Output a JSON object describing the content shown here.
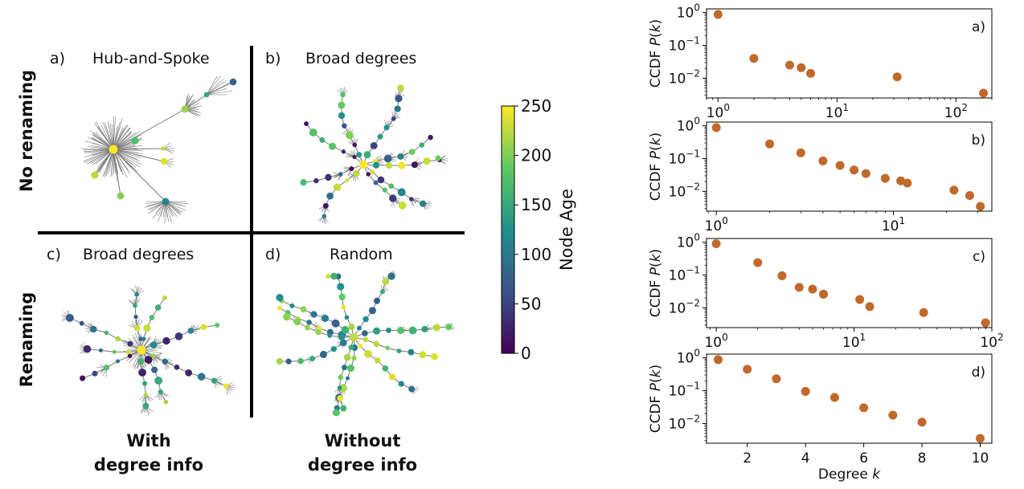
{
  "networks": {
    "row_labels": [
      "No renaming",
      "Renaming"
    ],
    "column_labels": [
      [
        "With",
        "degree info"
      ],
      [
        "Without",
        "degree info"
      ]
    ],
    "panels": [
      {
        "letter": "a)",
        "title": "Hub-and-Spoke"
      },
      {
        "letter": "b)",
        "title": "Broad degrees"
      },
      {
        "letter": "c)",
        "title": "Broad degrees"
      },
      {
        "letter": "d)",
        "title": "Random"
      }
    ]
  },
  "colorbar": {
    "label": "Node Age",
    "ticks": [
      0,
      50,
      100,
      150,
      200,
      250
    ],
    "range": [
      0,
      250
    ],
    "colors": [
      "#440154",
      "#3b528b",
      "#21918c",
      "#5ec962",
      "#fde725"
    ]
  },
  "chart_data": [
    {
      "type": "scatter",
      "panel_label": "a)",
      "ylabel": "CCDF P(k)",
      "xscale": "log",
      "yscale": "log",
      "xlim": [
        0.8,
        200
      ],
      "ylim": [
        0.0025,
        1.3
      ],
      "xticks": [
        1,
        10,
        100
      ],
      "xtick_labels": [
        [
          "10",
          "0"
        ],
        [
          "10",
          "1"
        ],
        [
          "10",
          "2"
        ]
      ],
      "yticks": [
        1,
        0.1,
        0.01
      ],
      "ytick_labels": [
        [
          "10",
          "0"
        ],
        [
          "10",
          "-1"
        ],
        [
          "10",
          "-2"
        ]
      ],
      "marker_color": "#c0692b",
      "x": [
        1,
        2,
        4,
        5,
        6,
        32,
        170
      ],
      "y": [
        0.88,
        0.04,
        0.025,
        0.021,
        0.014,
        0.011,
        0.0035
      ]
    },
    {
      "type": "scatter",
      "panel_label": "b)",
      "ylabel": "CCDF P(k)",
      "xscale": "log",
      "yscale": "log",
      "xlim": [
        0.88,
        36
      ],
      "ylim": [
        0.0025,
        1.3
      ],
      "xticks": [
        1,
        10
      ],
      "xtick_labels": [
        [
          "10",
          "0"
        ],
        [
          "10",
          "1"
        ]
      ],
      "yticks": [
        1,
        0.1,
        0.01
      ],
      "ytick_labels": [
        [
          "10",
          "0"
        ],
        [
          "10",
          "-1"
        ],
        [
          "10",
          "-2"
        ]
      ],
      "marker_color": "#c0692b",
      "x": [
        1,
        2,
        3,
        4,
        5,
        6,
        7,
        9,
        11,
        12,
        22,
        27,
        31
      ],
      "y": [
        0.88,
        0.28,
        0.15,
        0.085,
        0.062,
        0.045,
        0.035,
        0.025,
        0.021,
        0.018,
        0.011,
        0.0075,
        0.0035
      ]
    },
    {
      "type": "scatter",
      "panel_label": "c)",
      "ylabel": "CCDF P(k)",
      "xscale": "log",
      "yscale": "log",
      "xlim": [
        0.85,
        100
      ],
      "ylim": [
        0.0025,
        1.3
      ],
      "xticks": [
        1,
        10,
        100
      ],
      "xtick_labels": [
        [
          "10",
          "0"
        ],
        [
          "10",
          "1"
        ],
        [
          "10",
          "2"
        ]
      ],
      "yticks": [
        1,
        0.1,
        0.01
      ],
      "ytick_labels": [
        [
          "10",
          "0"
        ],
        [
          "10",
          "-1"
        ],
        [
          "10",
          "-2"
        ]
      ],
      "marker_color": "#c0692b",
      "x": [
        1,
        2,
        3,
        4,
        5,
        6,
        11,
        13,
        32,
        90
      ],
      "y": [
        0.9,
        0.24,
        0.095,
        0.042,
        0.037,
        0.026,
        0.018,
        0.011,
        0.0072,
        0.0035
      ]
    },
    {
      "type": "scatter",
      "panel_label": "d)",
      "ylabel": "CCDF P(k)",
      "xlabel": "Degree k",
      "xscale": "linear",
      "yscale": "log",
      "xlim": [
        0.6,
        10.4
      ],
      "ylim": [
        0.0025,
        1.3
      ],
      "xticks": [
        2,
        4,
        6,
        8,
        10
      ],
      "xtick_labels": [
        "2",
        "4",
        "6",
        "8",
        "10"
      ],
      "yticks": [
        1,
        0.1,
        0.01
      ],
      "ytick_labels": [
        [
          "10",
          "0"
        ],
        [
          "10",
          "-1"
        ],
        [
          "10",
          "-2"
        ]
      ],
      "marker_color": "#c0692b",
      "x": [
        1,
        2,
        3,
        4,
        5,
        6,
        7,
        8,
        10
      ],
      "y": [
        0.88,
        0.45,
        0.23,
        0.095,
        0.062,
        0.03,
        0.018,
        0.011,
        0.0035
      ]
    }
  ]
}
